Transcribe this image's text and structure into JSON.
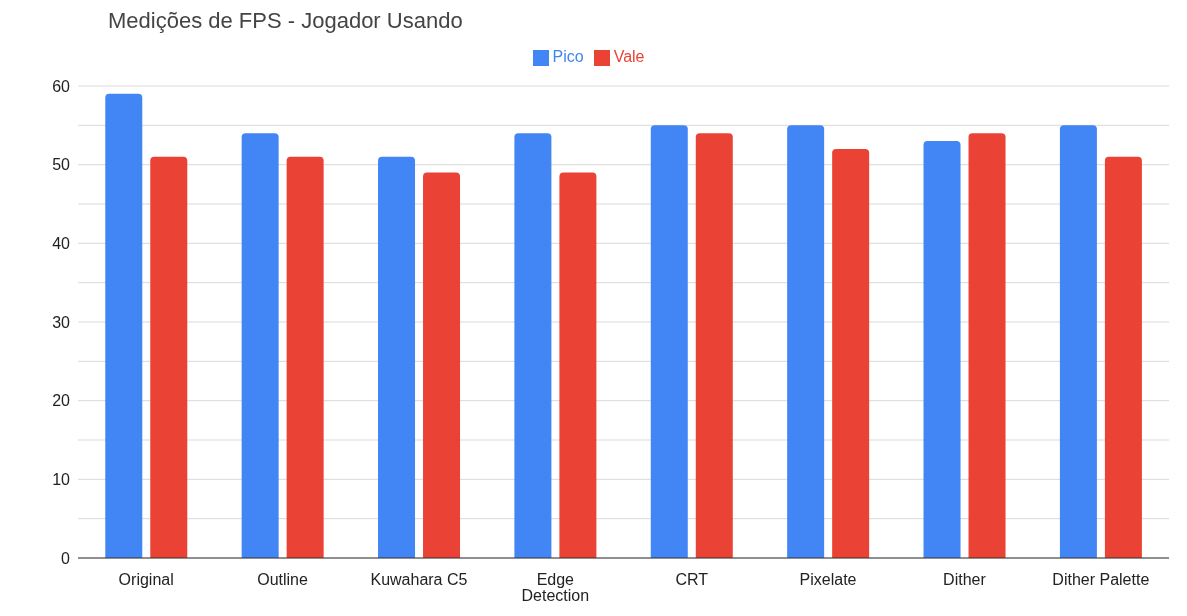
{
  "chart_data": {
    "type": "bar",
    "title": "Medições de FPS - Jogador Usando",
    "categories": [
      "Original",
      "Outline",
      "Kuwahara C5",
      "Edge Detection",
      "CRT",
      "Pixelate",
      "Dither",
      "Dither Palette"
    ],
    "series": [
      {
        "name": "Pico",
        "color": "#4285f4",
        "values": [
          59,
          54,
          51,
          54,
          55,
          55,
          53,
          55
        ]
      },
      {
        "name": "Vale",
        "color": "#ea4335",
        "values": [
          51,
          51,
          49,
          49,
          54,
          52,
          54,
          51
        ]
      }
    ],
    "ylim": [
      0,
      60
    ],
    "yticks": [
      0,
      {
        "value": 5,
        "label": null
      },
      10,
      {
        "value": 15,
        "label": null
      },
      20,
      {
        "value": 25,
        "label": null
      },
      30,
      {
        "value": 35,
        "label": null
      },
      40,
      {
        "value": 45,
        "label": null
      },
      50,
      {
        "value": 55,
        "label": null
      },
      60
    ],
    "grid": "y",
    "legend": "top"
  }
}
